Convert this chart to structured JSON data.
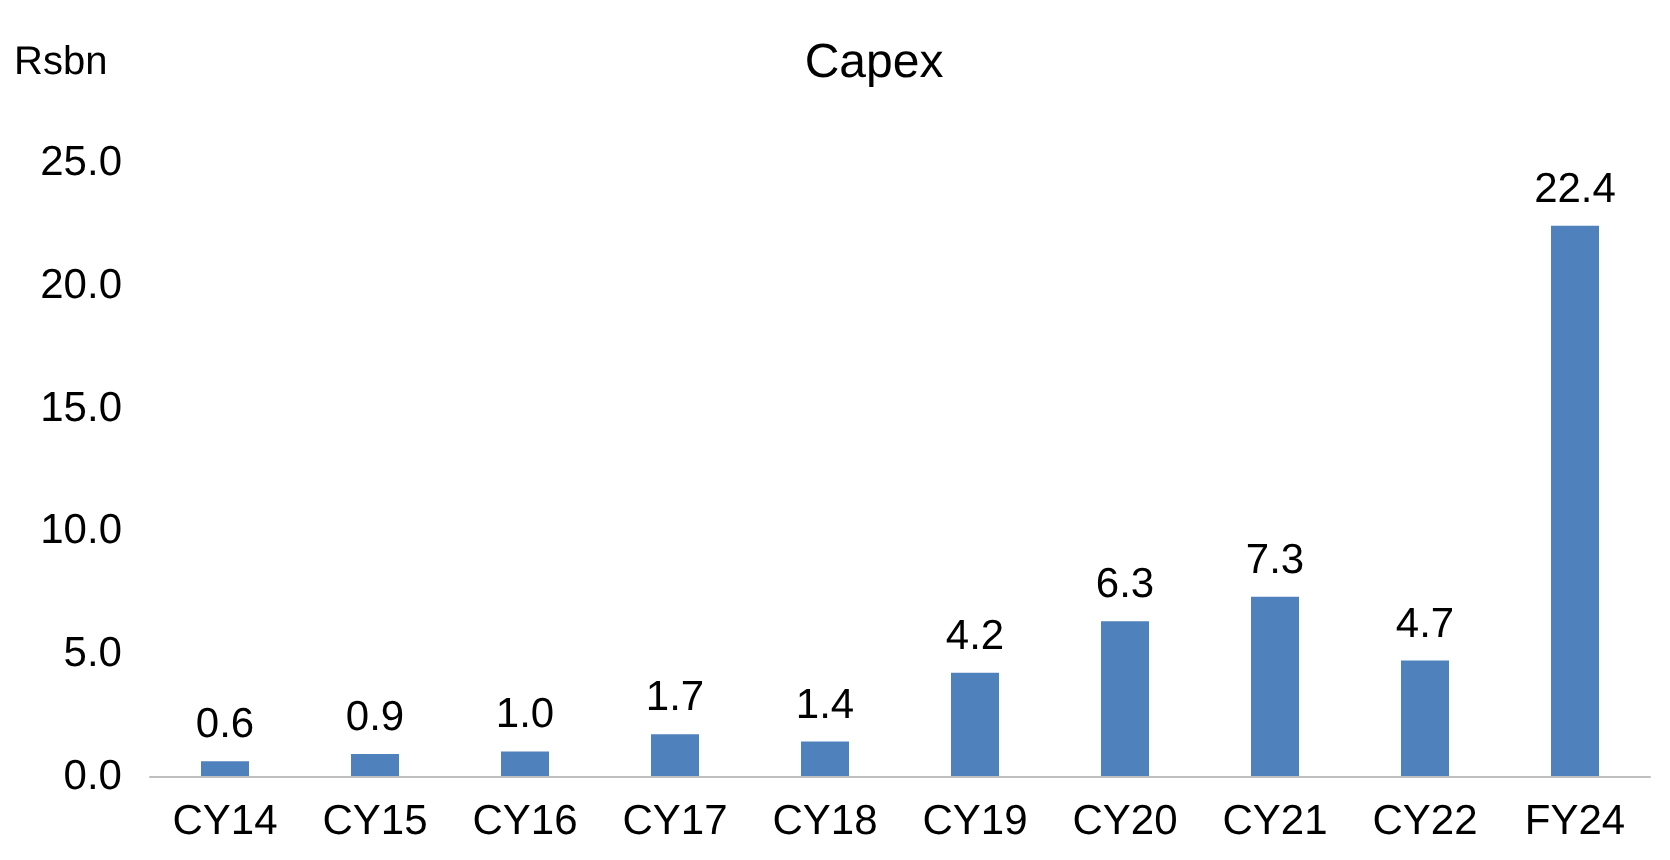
{
  "chart_data": {
    "type": "bar",
    "title": "Capex",
    "ylabel": "Rsbn",
    "categories": [
      "CY14",
      "CY15",
      "CY16",
      "CY17",
      "CY18",
      "CY19",
      "CY20",
      "CY21",
      "CY22",
      "FY24"
    ],
    "values": [
      0.6,
      0.9,
      1.0,
      1.7,
      1.4,
      4.2,
      6.3,
      7.3,
      4.7,
      22.4
    ],
    "color": "#4f81bd",
    "value_labels": [
      "0.6",
      "0.9",
      "1.0",
      "1.7",
      "1.4",
      "4.2",
      "6.3",
      "7.3",
      "4.7",
      "22.4"
    ],
    "ylim": [
      0,
      25
    ],
    "yticks": [
      {
        "value": 0,
        "label": "0.0"
      },
      {
        "value": 5,
        "label": "5.0"
      },
      {
        "value": 10,
        "label": "10.0"
      },
      {
        "value": 15,
        "label": "15.0"
      },
      {
        "value": 20,
        "label": "20.0"
      },
      {
        "value": 25,
        "label": "25.0"
      }
    ],
    "grid": false
  }
}
